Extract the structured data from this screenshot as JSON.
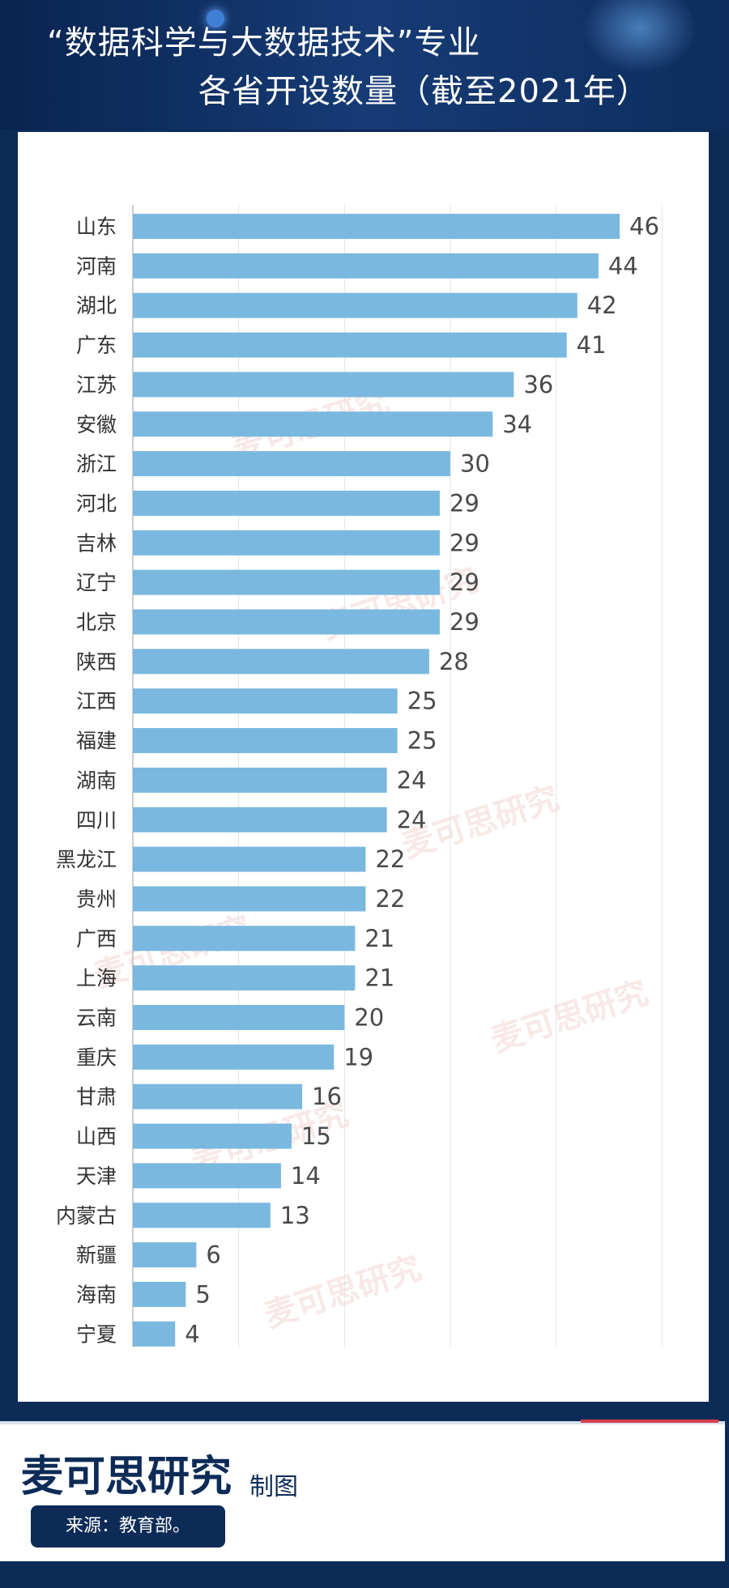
{
  "header": {
    "title_line1": "“数据科学与大数据技术”专业",
    "title_line2": "各省开设数量（截至2021年）"
  },
  "chart_data": {
    "type": "bar",
    "orientation": "horizontal",
    "title": "“数据科学与大数据技术”专业各省开设数量（截至2021年）",
    "categories": [
      "山东",
      "河南",
      "湖北",
      "广东",
      "江苏",
      "安徽",
      "浙江",
      "河北",
      "吉林",
      "辽宁",
      "北京",
      "陕西",
      "江西",
      "福建",
      "湖南",
      "四川",
      "黑龙江",
      "贵州",
      "广西",
      "上海",
      "云南",
      "重庆",
      "甘肃",
      "山西",
      "天津",
      "内蒙古",
      "新疆",
      "海南",
      "宁夏"
    ],
    "values": [
      46,
      44,
      42,
      41,
      36,
      34,
      30,
      29,
      29,
      29,
      29,
      28,
      25,
      25,
      24,
      24,
      22,
      22,
      21,
      21,
      20,
      19,
      16,
      15,
      14,
      13,
      6,
      5,
      4
    ],
    "xlim": [
      0,
      50
    ],
    "grid": true,
    "bar_color": "#7ab8df",
    "label_color": "#4a4a4a"
  },
  "watermark": "麦可思研究",
  "footer": {
    "brand": "麦可思研究",
    "brand_suffix": "制图",
    "source": "来源：教育部。"
  }
}
